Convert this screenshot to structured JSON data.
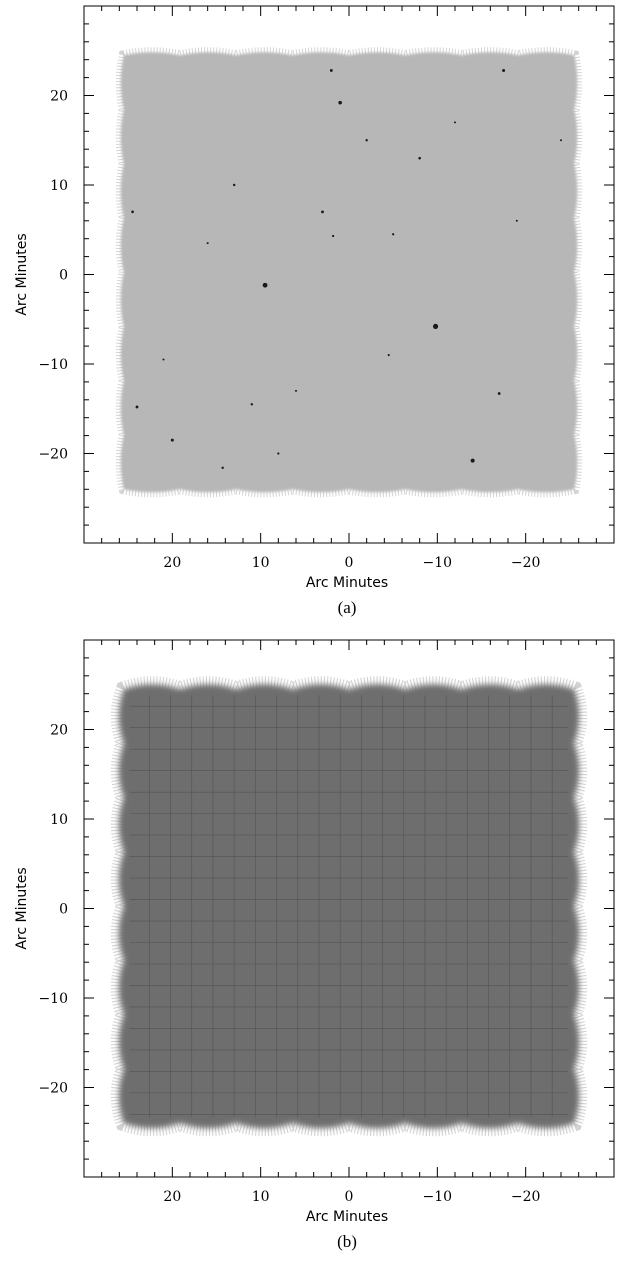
{
  "figure": {
    "panels": [
      {
        "caption": "(a)",
        "xlabel": "Arc Minutes",
        "ylabel": "Arc Minutes",
        "x_ticks": [
          {
            "value": 20,
            "label": "20"
          },
          {
            "value": 10,
            "label": "10"
          },
          {
            "value": 0,
            "label": "0"
          },
          {
            "value": -10,
            "label": "−10"
          },
          {
            "value": -20,
            "label": "−20"
          }
        ],
        "y_ticks": [
          {
            "value": 20,
            "label": "20"
          },
          {
            "value": 10,
            "label": "10"
          },
          {
            "value": 0,
            "label": "0"
          },
          {
            "value": -10,
            "label": "−10"
          },
          {
            "value": -20,
            "label": "−20"
          }
        ],
        "xlim": [
          30,
          -30
        ],
        "ylim": [
          -30,
          30
        ],
        "image_style": "light-gray map with scattered dark point sources",
        "fill_color": "#b7b7b7",
        "sources": [
          {
            "x": 9.5,
            "y": -1.2,
            "s": 2.4
          },
          {
            "x": -9.8,
            "y": -5.8,
            "s": 2.6
          },
          {
            "x": -14,
            "y": -20.8,
            "s": 2.0
          },
          {
            "x": 1,
            "y": 19.2,
            "s": 1.8
          },
          {
            "x": 2,
            "y": 22.8,
            "s": 1.4
          },
          {
            "x": -17.5,
            "y": 22.8,
            "s": 1.5
          },
          {
            "x": 20,
            "y": -18.5,
            "s": 1.5
          },
          {
            "x": 24,
            "y": -14.8,
            "s": 1.4
          },
          {
            "x": 11,
            "y": -14.5,
            "s": 1.2
          },
          {
            "x": -8,
            "y": 13,
            "s": 1.3
          },
          {
            "x": 3,
            "y": 7,
            "s": 1.4
          },
          {
            "x": -2,
            "y": 15,
            "s": 1.2
          },
          {
            "x": -17,
            "y": -13.3,
            "s": 1.4
          },
          {
            "x": 13,
            "y": 10,
            "s": 1.2
          },
          {
            "x": -5,
            "y": 4.5,
            "s": 1.1
          },
          {
            "x": 1.8,
            "y": 4.3,
            "s": 1.1
          },
          {
            "x": 24.5,
            "y": 7,
            "s": 1.3
          },
          {
            "x": 14.3,
            "y": -21.6,
            "s": 1.2
          },
          {
            "x": -4.5,
            "y": -9,
            "s": 1.1
          },
          {
            "x": 6,
            "y": -13,
            "s": 1.0
          },
          {
            "x": 16,
            "y": 3.5,
            "s": 1.0
          },
          {
            "x": -19,
            "y": 6,
            "s": 1.0
          },
          {
            "x": -12,
            "y": 17,
            "s": 1.0
          },
          {
            "x": 8,
            "y": -20,
            "s": 1.1
          },
          {
            "x": -24,
            "y": 15,
            "s": 1.0
          },
          {
            "x": 21,
            "y": -9.5,
            "s": 1.0
          }
        ]
      },
      {
        "caption": "(b)",
        "xlabel": "Arc Minutes",
        "ylabel": "Arc Minutes",
        "x_ticks": [
          {
            "value": 20,
            "label": "20"
          },
          {
            "value": 10,
            "label": "10"
          },
          {
            "value": 0,
            "label": "0"
          },
          {
            "value": -10,
            "label": "−10"
          },
          {
            "value": -20,
            "label": "−20"
          }
        ],
        "y_ticks": [
          {
            "value": 20,
            "label": "20"
          },
          {
            "value": 10,
            "label": "10"
          },
          {
            "value": 0,
            "label": "0"
          },
          {
            "value": -10,
            "label": "−10"
          },
          {
            "value": -20,
            "label": "−20"
          }
        ],
        "xlim": [
          30,
          -30
        ],
        "ylim": [
          -30,
          30
        ],
        "image_style": "dark-gray coverage map with scalloped edges and grid pattern",
        "fill_color": "#6e6e6e",
        "sources": []
      }
    ]
  }
}
